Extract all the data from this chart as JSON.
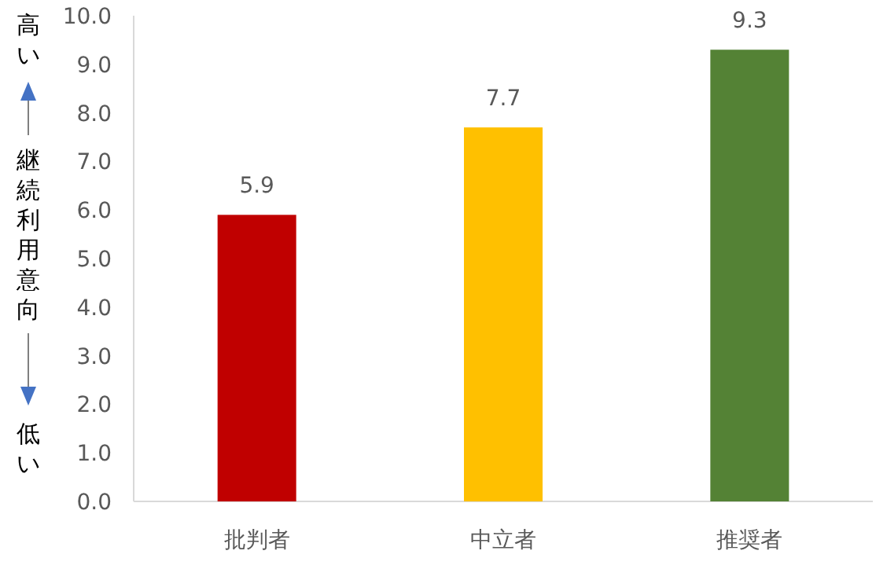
{
  "chart_data": {
    "type": "bar",
    "categories": [
      "批判者",
      "中立者",
      "推奨者"
    ],
    "values": [
      5.9,
      7.7,
      9.3
    ],
    "colors": [
      "#c00000",
      "#ffc000",
      "#548235"
    ],
    "ylabel": "継続利用意向",
    "annotations": [
      "高い",
      "低い"
    ],
    "ylim": [
      0,
      10
    ],
    "yticks": [
      {
        "value": 0,
        "label": "0.0"
      },
      {
        "value": 1,
        "label": "1.0"
      },
      {
        "value": 2,
        "label": "2.0"
      },
      {
        "value": 3,
        "label": "3.0"
      },
      {
        "value": 4,
        "label": "4.0"
      },
      {
        "value": 5,
        "label": "5.0"
      },
      {
        "value": 6,
        "label": "6.0"
      },
      {
        "value": 7,
        "label": "7.0"
      },
      {
        "value": 8,
        "label": "8.0"
      },
      {
        "value": 9,
        "label": "9.0"
      },
      {
        "value": 10,
        "label": "10.0"
      }
    ],
    "data_labels": true,
    "grid": false
  }
}
